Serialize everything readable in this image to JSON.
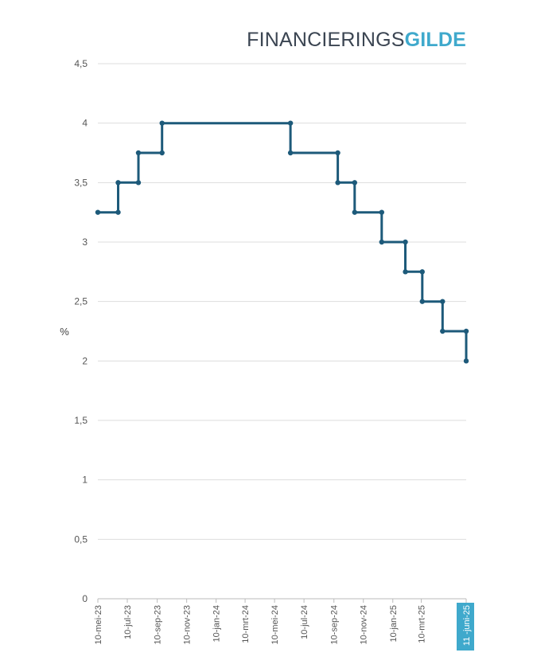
{
  "logo": {
    "part1": "FINANCIERINGS",
    "part2": "GILDE"
  },
  "chart_data": {
    "type": "line",
    "step": true,
    "ylabel": "%",
    "ylim": [
      0,
      4.5
    ],
    "yticks": [
      "0",
      "0,5",
      "1",
      "1,5",
      "2",
      "2,5",
      "3",
      "3,5",
      "4",
      "4,5"
    ],
    "ytick_values": [
      0,
      0.5,
      1,
      1.5,
      2,
      2.5,
      3,
      3.5,
      4,
      4.5
    ],
    "xlim": [
      "2023-05-10",
      "2025-06-11"
    ],
    "xticks": [
      {
        "date": "2023-05-10",
        "label": "10-mei-23"
      },
      {
        "date": "2023-07-10",
        "label": "10-jul-23"
      },
      {
        "date": "2023-09-10",
        "label": "10-sep-23"
      },
      {
        "date": "2023-11-10",
        "label": "10-nov-23"
      },
      {
        "date": "2024-01-10",
        "label": "10-jan-24"
      },
      {
        "date": "2024-03-10",
        "label": "10-mrt-24"
      },
      {
        "date": "2024-05-10",
        "label": "10-mei-24"
      },
      {
        "date": "2024-07-10",
        "label": "10-jul-24"
      },
      {
        "date": "2024-09-10",
        "label": "10-sep-24"
      },
      {
        "date": "2024-11-10",
        "label": "10-nov-24"
      },
      {
        "date": "2025-01-10",
        "label": "10-jan-25"
      },
      {
        "date": "2025-03-10",
        "label": "10-mrt-25"
      },
      {
        "date": "2025-06-11",
        "label": "11 -juni-25",
        "highlight": true
      }
    ],
    "grid": true,
    "colors": {
      "line": "#1d5a7a",
      "grid": "#dddddd",
      "highlight": "#3fa9cc"
    },
    "series": [
      {
        "points": [
          {
            "x": "2023-05-10",
            "y": 3.25
          },
          {
            "x": "2023-06-21",
            "y": 3.25
          },
          {
            "x": "2023-06-21",
            "y": 3.5
          },
          {
            "x": "2023-08-02",
            "y": 3.5
          },
          {
            "x": "2023-08-02",
            "y": 3.75
          },
          {
            "x": "2023-09-20",
            "y": 3.75
          },
          {
            "x": "2023-09-20",
            "y": 4
          },
          {
            "x": "2024-06-12",
            "y": 4
          },
          {
            "x": "2024-06-12",
            "y": 3.75
          },
          {
            "x": "2024-09-18",
            "y": 3.75
          },
          {
            "x": "2024-09-18",
            "y": 3.5
          },
          {
            "x": "2024-10-23",
            "y": 3.5
          },
          {
            "x": "2024-10-23",
            "y": 3.25
          },
          {
            "x": "2024-12-18",
            "y": 3.25
          },
          {
            "x": "2024-12-18",
            "y": 3
          },
          {
            "x": "2025-02-05",
            "y": 3
          },
          {
            "x": "2025-02-05",
            "y": 2.75
          },
          {
            "x": "2025-03-12",
            "y": 2.75
          },
          {
            "x": "2025-03-12",
            "y": 2.5
          },
          {
            "x": "2025-04-23",
            "y": 2.5
          },
          {
            "x": "2025-04-23",
            "y": 2.25
          },
          {
            "x": "2025-06-11",
            "y": 2.25
          },
          {
            "x": "2025-06-11",
            "y": 2
          }
        ]
      }
    ]
  }
}
